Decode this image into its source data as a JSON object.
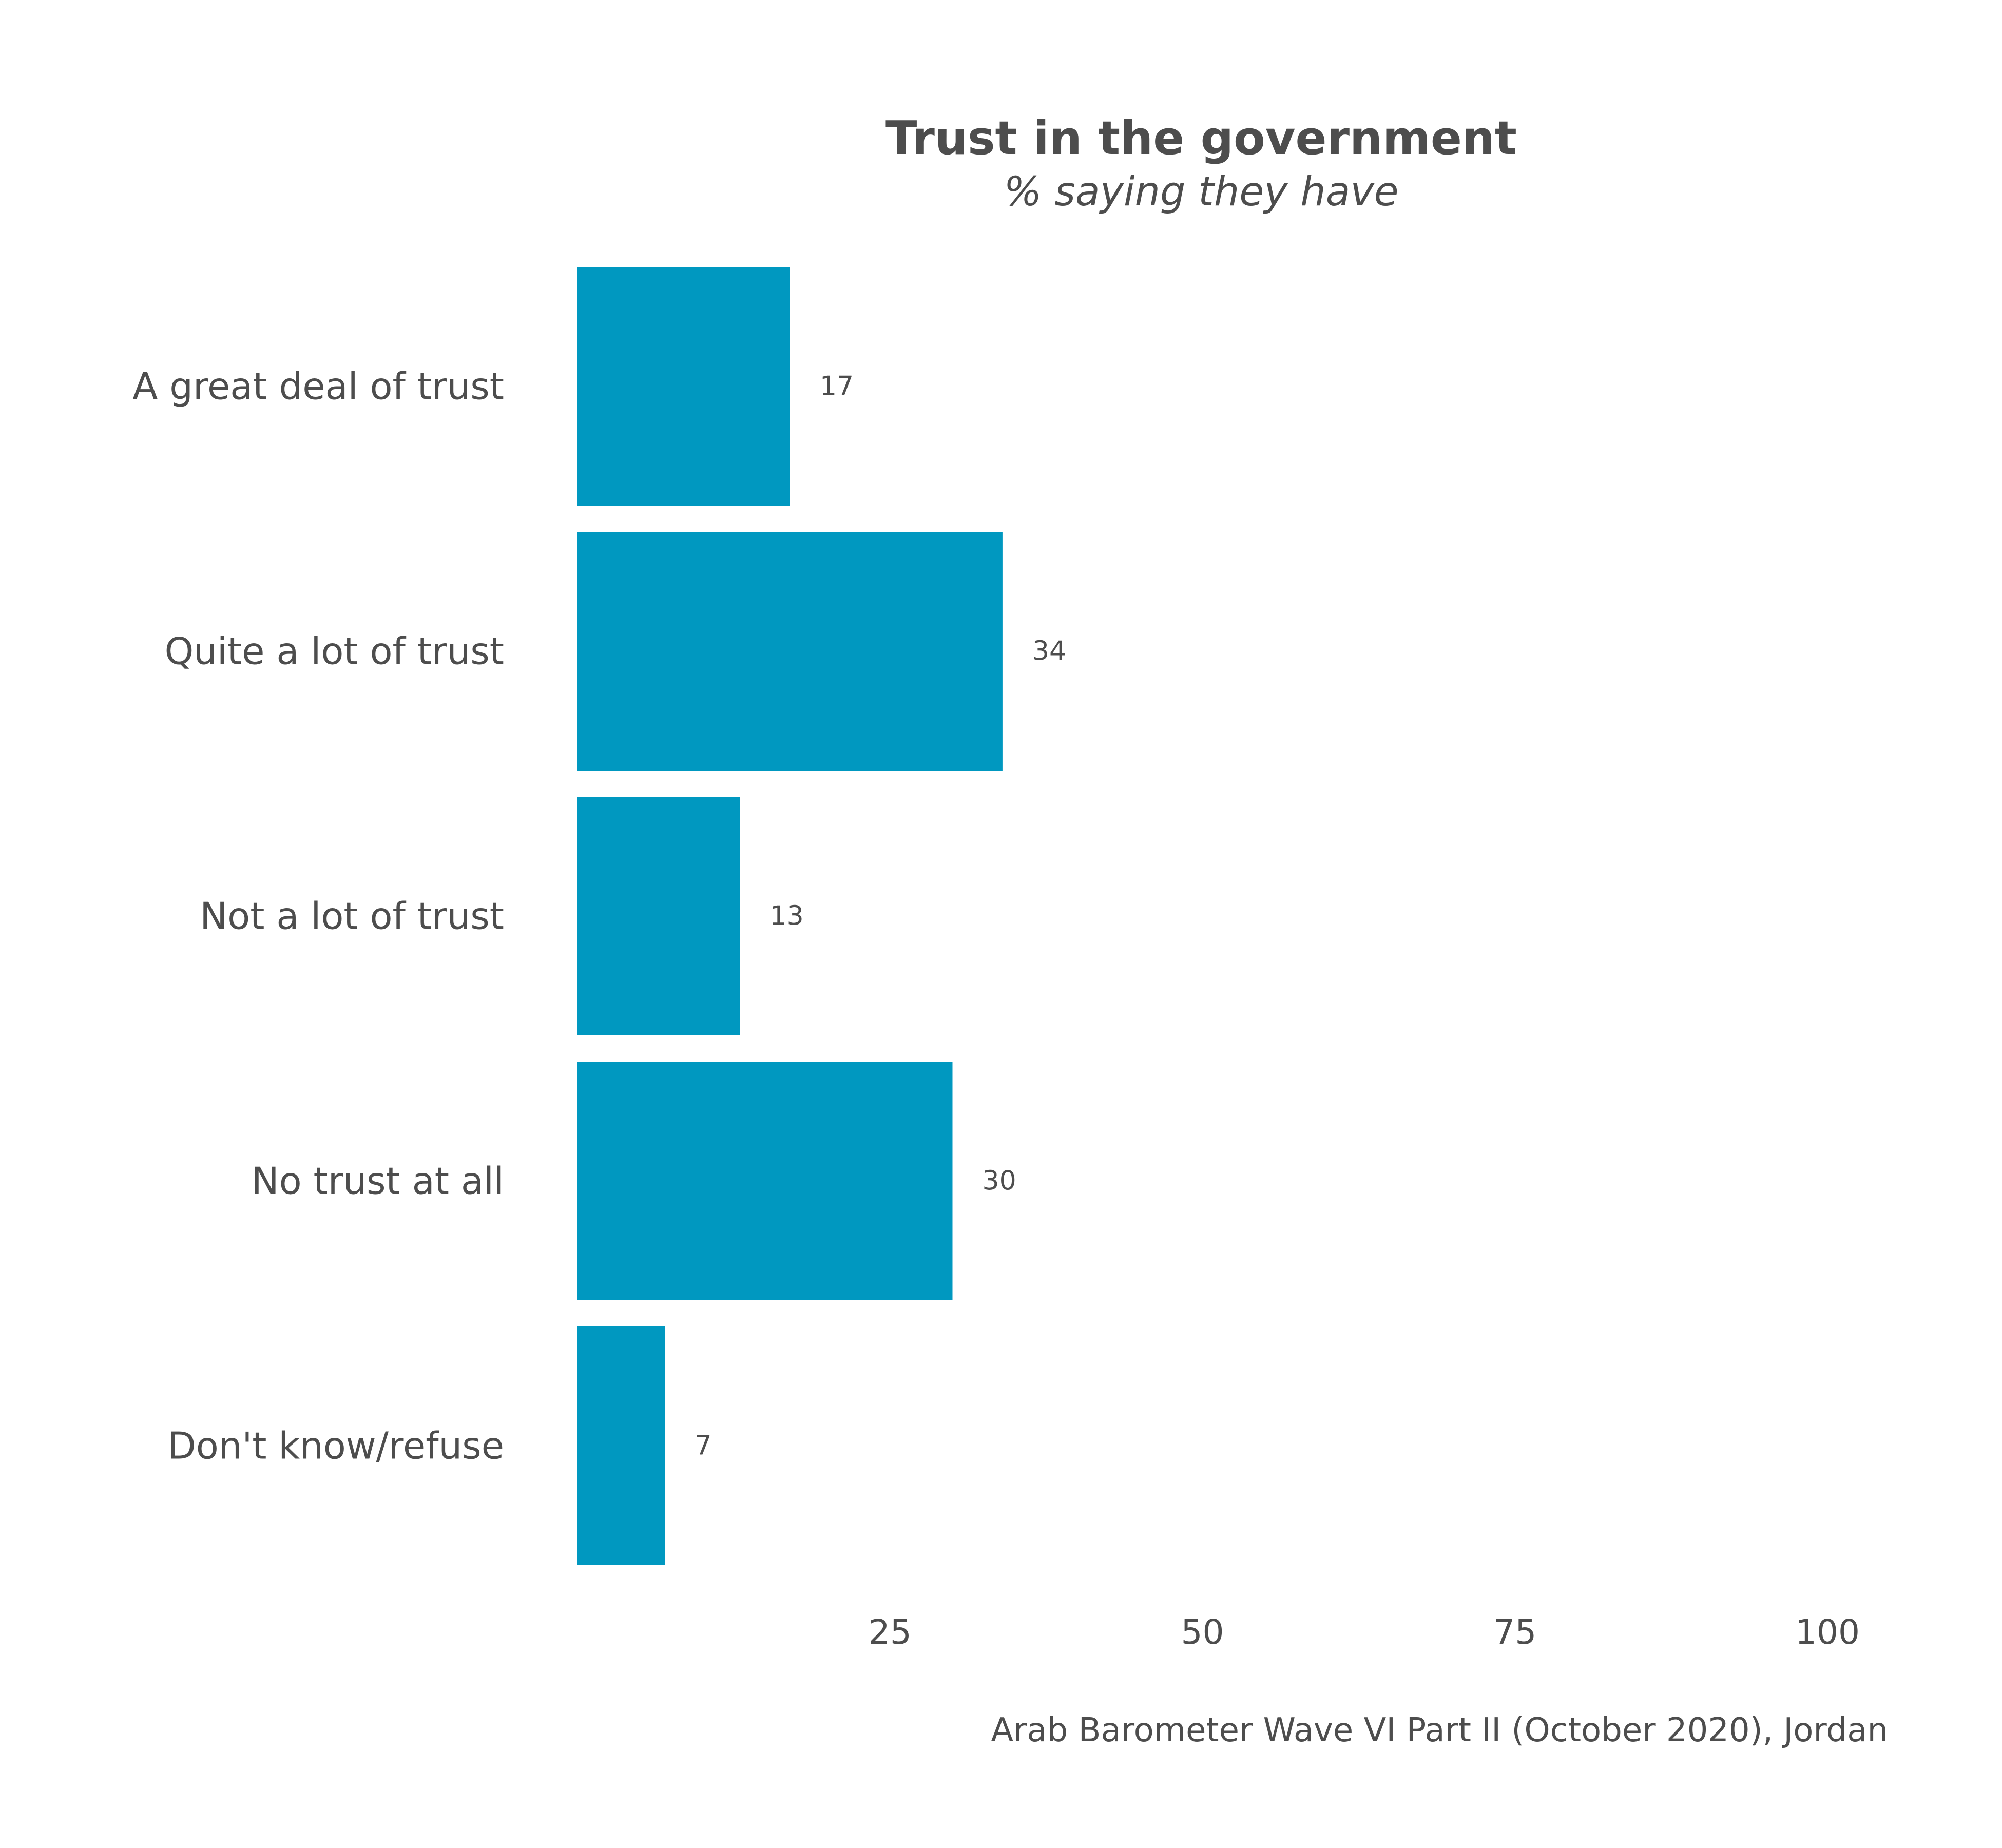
{
  "chart_data": {
    "type": "bar",
    "orientation": "horizontal",
    "title": "Trust in the government",
    "subtitle": "% saying they have",
    "caption": "Arab Barometer Wave VI Part II (October 2020), Jordan",
    "categories": [
      "A great deal of trust",
      "Quite a lot of trust",
      "Not a lot of trust",
      "No trust at all",
      "Don't know/refuse"
    ],
    "values": [
      17,
      34,
      13,
      30,
      7
    ],
    "value_labels": [
      "17",
      "34",
      "13",
      "30",
      "7"
    ],
    "xticks": [
      25,
      50,
      75,
      100
    ],
    "xtick_labels": [
      "25",
      "50",
      "75",
      "100"
    ],
    "xlim": [
      0,
      100
    ],
    "grid": false,
    "legend": "none",
    "bar_color": "#0098c0",
    "text_color": "#4d4d4d",
    "background": "#ffffff"
  }
}
